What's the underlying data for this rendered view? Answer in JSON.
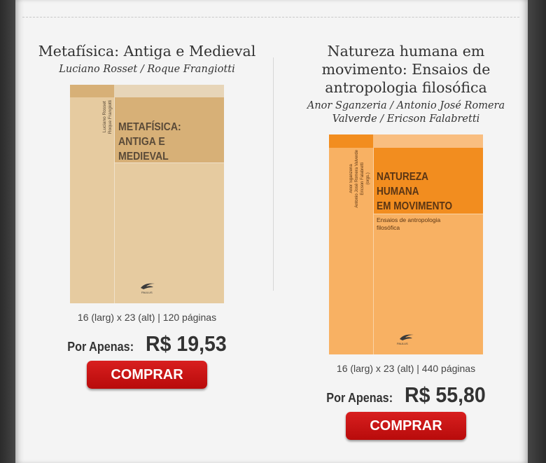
{
  "products": [
    {
      "title": "Metafísica: Antiga e Medieval",
      "authors": "Luciano Rosset / Roque Frangiotti",
      "cover": {
        "title_lines": [
          "METAFÍSICA:",
          "ANTIGA E",
          "MEDIEVAL"
        ],
        "spine_lines": [
          "Luciano Rosset",
          "Roque Frangiotti"
        ],
        "publisher": "PAULUS",
        "colors": {
          "background": "#e6cba0",
          "accent": "#d7b077",
          "title": "#5a4a38"
        }
      },
      "dimensions": "16 (larg) x 23 (alt) | 120 páginas",
      "price_label": "Por Apenas:",
      "price": "R$ 19,53",
      "buy_label": "COMPRAR"
    },
    {
      "title": "Natureza humana em movimento: Ensaios de antropologia filosófica",
      "authors": "Anor Sganzeria / Antonio José Romera Valverde / Ericson Falabretti",
      "cover": {
        "title_lines": [
          "NATUREZA",
          "HUMANA",
          "EM MOVIMENTO"
        ],
        "subtitle_lines": [
          "Ensaios de antropologia",
          "filosófica"
        ],
        "spine_lines": [
          "Anor Sganzeria",
          "Antonio José Romera Valverde",
          "Ericson Falabretti",
          "(orgs.)"
        ],
        "publisher": "PAULUS",
        "colors": {
          "background": "#f8b163",
          "accent": "#f28d1f",
          "title": "#5a3514"
        }
      },
      "dimensions": "16 (larg) x 23 (alt) | 440 páginas",
      "price_label": "Por Apenas:",
      "price": "R$ 55,80",
      "buy_label": "COMPRAR"
    }
  ],
  "colors": {
    "buy_button": "#c41414",
    "panel": "#f4f4f4",
    "frame": "#3a3a3a"
  }
}
